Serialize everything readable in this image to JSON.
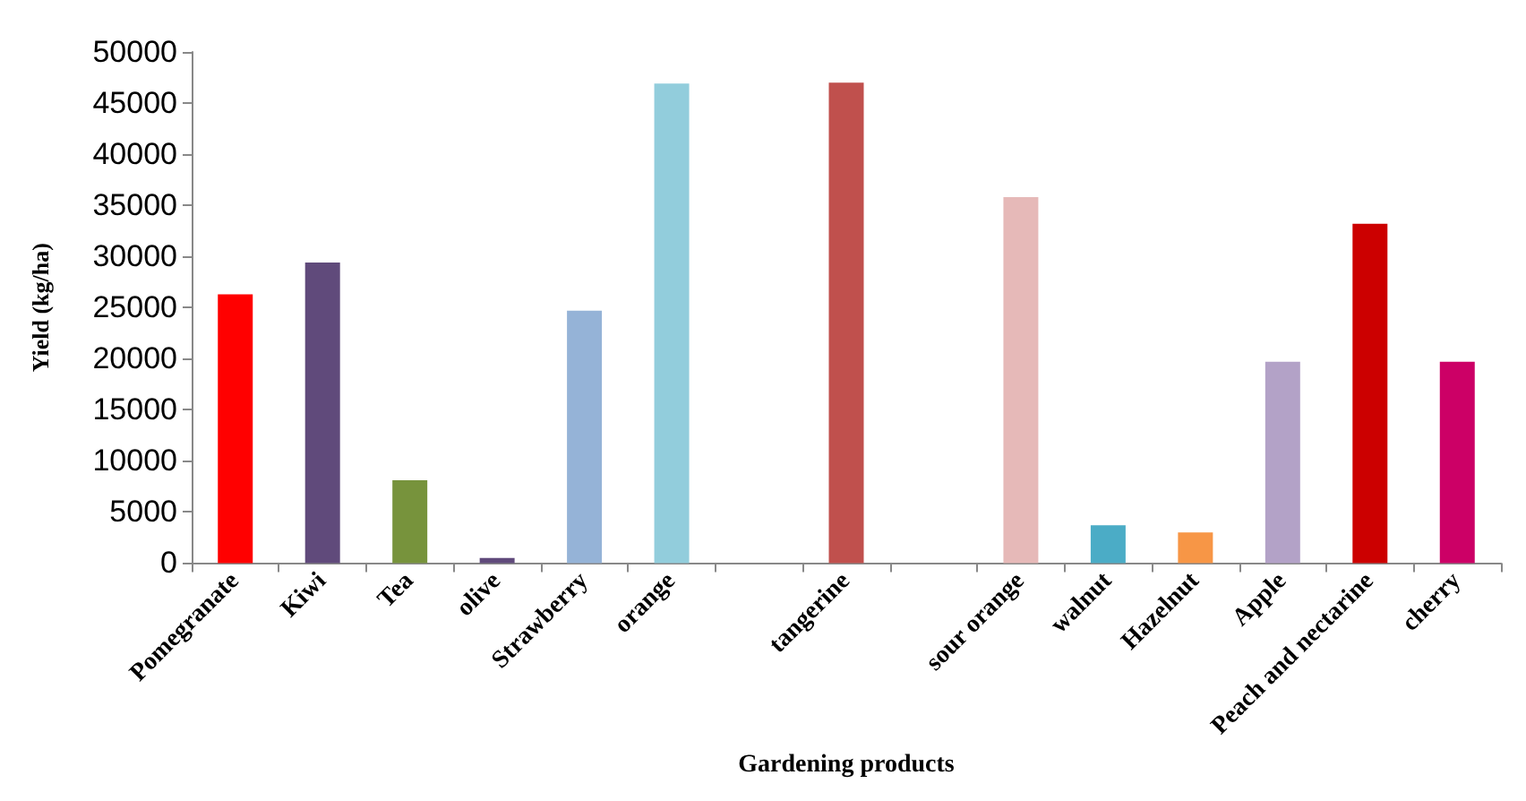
{
  "chart_data": {
    "type": "bar",
    "xlabel": "Gardening products",
    "ylabel": "Yield (kg/ha)",
    "categories": [
      "Pomegranate",
      "Kiwi",
      "Tea",
      "olive",
      "Strawberry",
      "orange",
      null,
      "tangerine",
      null,
      "sour orange",
      "walnut",
      "Hazelnut",
      "Apple",
      "Peach and nectarine",
      "cherry"
    ],
    "values": [
      26300,
      29400,
      8100,
      500,
      24700,
      46900,
      null,
      47000,
      null,
      35800,
      3700,
      3000,
      19700,
      33200,
      19700
    ],
    "colors": [
      "#ff0000",
      "#604a7b",
      "#77933c",
      "#604a7b",
      "#95b3d7",
      "#92cddc",
      null,
      "#c0504d",
      null,
      "#e6b9b8",
      "#4bacc6",
      "#f79646",
      "#b3a2c7",
      "#cc0000",
      "#cc0066"
    ],
    "ylim": [
      0,
      50000
    ],
    "yticks": [
      0,
      5000,
      10000,
      15000,
      20000,
      25000,
      30000,
      35000,
      40000,
      45000,
      50000
    ],
    "grid": false
  }
}
